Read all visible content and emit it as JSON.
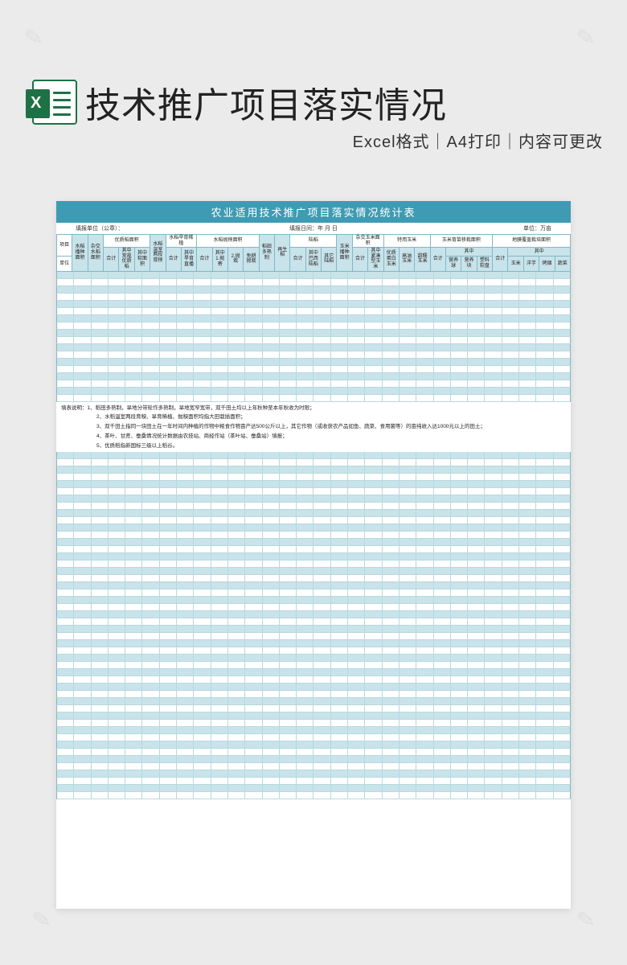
{
  "header": {
    "title": "技术推广项目落实情况",
    "subtitle": "Excel格式｜A4打印｜内容可更改",
    "excel_letter": "X"
  },
  "table": {
    "title": "农业适用技术推广项目落实情况统计表",
    "info": {
      "org": "填报单位（公章）：",
      "date": "填报日间：年 月 日",
      "unit": "单位：万亩"
    },
    "top": {
      "c1": "项目",
      "c2": "水稻播种面积",
      "c3": "杂交水稻面积",
      "g1": "优质稻面积",
      "c4": "水稻温室两段育秧",
      "g2": "水稻旱育稀植",
      "g3": "水稻抛秧面积",
      "c5": "稻田多熟制",
      "c6": "再生稻",
      "g4": "陆稻",
      "c7": "玉米播种面积",
      "g5": "杂交玉米面积",
      "g6": "特用玉米",
      "g7": "玉米育苗移栽面积",
      "g8": "地膜覆盖栽培面积"
    },
    "sub": {
      "g1a": "合计",
      "g1b": "其中常规优质稻",
      "g1c": "其中软面积",
      "g2a": "合计",
      "g2b": "其中旱育直播",
      "g3a": "合计",
      "g3b": "其中1.抛寄",
      "g3c": "2.抛栽",
      "g3d": "免耕抛栽",
      "g4a": "合计",
      "g4b": "其中巴西陆稻",
      "g4c": "其它陆稻",
      "g5a": "合计",
      "g5b": "其中紧凑型玉米",
      "g6a": "优质蛋白玉米",
      "g6b": "高油玉米",
      "g6c": "甜糯玉米",
      "g7a": "合计",
      "g7b": "其中",
      "g7b1": "营养球",
      "g7b2": "营养块",
      "g7b3": "塑料软盘",
      "g8a": "合计",
      "g8b": "其中",
      "g8b1": "玉米",
      "g8b2": "洋芋",
      "g8b3": "烤烟",
      "g8b4": "蔬菜",
      "unit": "单位"
    },
    "notes_label": "填表说明：",
    "notes": [
      "1、稻田多熟制，旱地分带轮作多熟制，旱地宽窄宽带，双千田土均以上年秋种至本年秋收为时限；",
      "2、水稻温室两段育秧、旱育稀植、抛秧面积均指大田栽插面积；",
      "3、双千田土指同一块田土在一年时间内种植的作物中粮食作物亩产达500公斤以上，其它作物（或收获农产品如鱼、蔬菜、食用菌等）的亩纯收入达1000元以上的田土；",
      "4、茶叶、甘蔗、蚕桑情况统计数据由农技站、商经作站（茶叶站、蚕桑站）填报；",
      "5、优质稻指新国标三级以上稻谷。"
    ]
  },
  "style": {
    "bg": "#ebebeb",
    "header_stripe": "#c9e3ea",
    "border": "#7fb8c7",
    "title_bg": "#3e9bb3",
    "num_cols": 30,
    "top_stripes": 18,
    "bottom_stripes": 48
  }
}
